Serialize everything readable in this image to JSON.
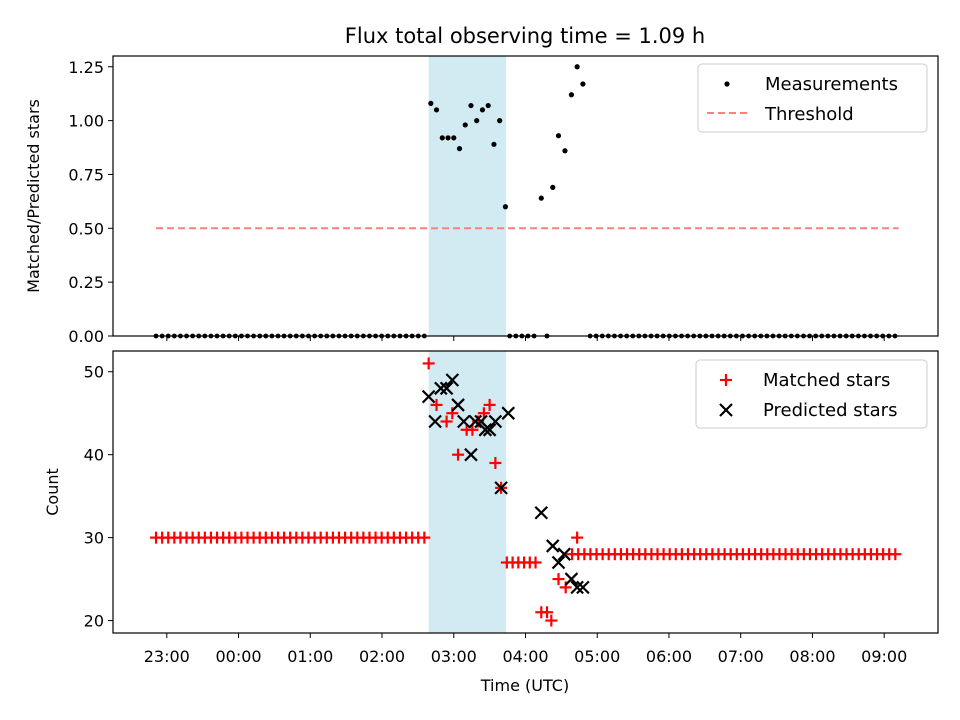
{
  "chart_data": {
    "title": "Flux total observing time = 1.09 h",
    "xlabel": "Time (UTC)",
    "x_unit": "hours since 00:00 UTC",
    "xlim": [
      -1.75,
      9.75
    ],
    "x_ticks": [
      {
        "value": -1,
        "label": "23:00"
      },
      {
        "value": 0,
        "label": "00:00"
      },
      {
        "value": 1,
        "label": "01:00"
      },
      {
        "value": 2,
        "label": "02:00"
      },
      {
        "value": 3,
        "label": "03:00"
      },
      {
        "value": 4,
        "label": "04:00"
      },
      {
        "value": 5,
        "label": "05:00"
      },
      {
        "value": 6,
        "label": "06:00"
      },
      {
        "value": 7,
        "label": "07:00"
      },
      {
        "value": 8,
        "label": "08:00"
      },
      {
        "value": 9,
        "label": "09:00"
      }
    ],
    "shaded_span": {
      "x_start": 2.65,
      "x_end": 3.73,
      "color": "#add8e6"
    },
    "top": {
      "type": "scatter",
      "ylabel": "Matched/Predicted stars",
      "ylim": [
        0,
        1.3
      ],
      "y_ticks": [
        0,
        0.25,
        0.5,
        0.75,
        1.0,
        1.25
      ],
      "y_tick_labels": [
        "0.00",
        "0.25",
        "0.50",
        "0.75",
        "1.00",
        "1.25"
      ],
      "legend": {
        "position": "upper right",
        "entries": [
          "Measurements",
          "Threshold"
        ]
      },
      "zero_runs": [
        {
          "start": -1.15,
          "end": 2.6,
          "step": 0.085
        },
        {
          "start": 3.78,
          "end": 4.15,
          "step": 0.085
        },
        {
          "start": 4.9,
          "end": 9.2,
          "step": 0.085
        }
      ],
      "zero_extra": [
        4.3
      ],
      "measurements": [
        {
          "x": 2.68,
          "y": 1.08
        },
        {
          "x": 2.76,
          "y": 1.05
        },
        {
          "x": 2.84,
          "y": 0.92
        },
        {
          "x": 2.92,
          "y": 0.92
        },
        {
          "x": 3.0,
          "y": 0.92
        },
        {
          "x": 3.08,
          "y": 0.87
        },
        {
          "x": 3.16,
          "y": 0.98
        },
        {
          "x": 3.24,
          "y": 1.07
        },
        {
          "x": 3.32,
          "y": 1.0
        },
        {
          "x": 3.4,
          "y": 1.05
        },
        {
          "x": 3.48,
          "y": 1.07
        },
        {
          "x": 3.56,
          "y": 0.89
        },
        {
          "x": 3.64,
          "y": 1.0
        },
        {
          "x": 3.72,
          "y": 0.6
        },
        {
          "x": 4.22,
          "y": 0.64
        },
        {
          "x": 4.38,
          "y": 0.69
        },
        {
          "x": 4.46,
          "y": 0.93
        },
        {
          "x": 4.55,
          "y": 0.86
        },
        {
          "x": 4.64,
          "y": 1.12
        },
        {
          "x": 4.72,
          "y": 1.25
        },
        {
          "x": 4.8,
          "y": 1.17
        }
      ],
      "threshold": {
        "value": 0.5,
        "x_start": -1.15,
        "x_end": 9.2,
        "color": "#ff7f7f"
      }
    },
    "bottom": {
      "type": "scatter",
      "ylabel": "Count",
      "ylim": [
        18.5,
        52.5
      ],
      "y_ticks": [
        20,
        30,
        40,
        50
      ],
      "legend": {
        "position": "upper right",
        "entries": [
          "Matched stars",
          "Predicted stars"
        ]
      },
      "matched_runs": [
        {
          "start": -1.15,
          "end": 2.6,
          "step": 0.085,
          "y": 30
        },
        {
          "start": 4.65,
          "end": 9.2,
          "step": 0.085,
          "y": 28
        }
      ],
      "matched_points": [
        {
          "x": 2.65,
          "y": 51
        },
        {
          "x": 2.76,
          "y": 46
        },
        {
          "x": 2.9,
          "y": 44
        },
        {
          "x": 2.98,
          "y": 45
        },
        {
          "x": 3.06,
          "y": 40
        },
        {
          "x": 3.18,
          "y": 43
        },
        {
          "x": 3.26,
          "y": 43
        },
        {
          "x": 3.34,
          "y": 44
        },
        {
          "x": 3.42,
          "y": 45
        },
        {
          "x": 3.5,
          "y": 46
        },
        {
          "x": 3.58,
          "y": 39
        },
        {
          "x": 3.66,
          "y": 36
        },
        {
          "x": 3.74,
          "y": 27
        },
        {
          "x": 3.82,
          "y": 27
        },
        {
          "x": 3.9,
          "y": 27
        },
        {
          "x": 3.98,
          "y": 27
        },
        {
          "x": 4.06,
          "y": 27
        },
        {
          "x": 4.14,
          "y": 27
        },
        {
          "x": 4.22,
          "y": 21
        },
        {
          "x": 4.3,
          "y": 21
        },
        {
          "x": 4.36,
          "y": 20
        },
        {
          "x": 4.46,
          "y": 25
        },
        {
          "x": 4.56,
          "y": 24
        },
        {
          "x": 4.72,
          "y": 30
        }
      ],
      "predicted_points": [
        {
          "x": 2.65,
          "y": 47
        },
        {
          "x": 2.74,
          "y": 44
        },
        {
          "x": 2.82,
          "y": 48
        },
        {
          "x": 2.9,
          "y": 48
        },
        {
          "x": 2.98,
          "y": 49
        },
        {
          "x": 3.06,
          "y": 46
        },
        {
          "x": 3.14,
          "y": 44
        },
        {
          "x": 3.24,
          "y": 40
        },
        {
          "x": 3.3,
          "y": 44
        },
        {
          "x": 3.38,
          "y": 44
        },
        {
          "x": 3.44,
          "y": 43
        },
        {
          "x": 3.5,
          "y": 43
        },
        {
          "x": 3.58,
          "y": 44
        },
        {
          "x": 3.66,
          "y": 36
        },
        {
          "x": 3.76,
          "y": 45
        },
        {
          "x": 4.22,
          "y": 33
        },
        {
          "x": 4.38,
          "y": 29
        },
        {
          "x": 4.46,
          "y": 27
        },
        {
          "x": 4.54,
          "y": 28
        },
        {
          "x": 4.64,
          "y": 25
        },
        {
          "x": 4.72,
          "y": 24
        },
        {
          "x": 4.8,
          "y": 24
        }
      ]
    }
  }
}
